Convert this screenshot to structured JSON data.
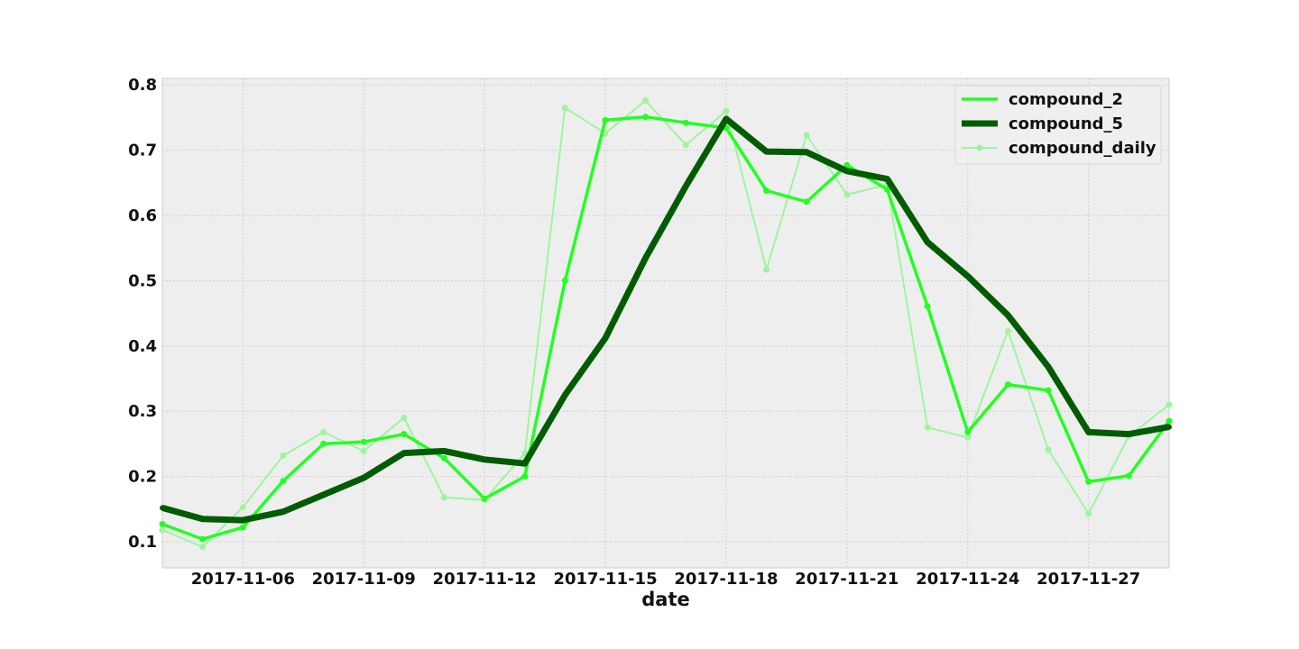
{
  "chart_data": {
    "type": "line",
    "xlabel": "date",
    "ylabel": "",
    "x": [
      "2017-11-04",
      "2017-11-05",
      "2017-11-06",
      "2017-11-07",
      "2017-11-08",
      "2017-11-09",
      "2017-11-10",
      "2017-11-11",
      "2017-11-12",
      "2017-11-13",
      "2017-11-14",
      "2017-11-15",
      "2017-11-16",
      "2017-11-17",
      "2017-11-18",
      "2017-11-19",
      "2017-11-20",
      "2017-11-21",
      "2017-11-22",
      "2017-11-23",
      "2017-11-24",
      "2017-11-25",
      "2017-11-26",
      "2017-11-27",
      "2017-11-28",
      "2017-11-29"
    ],
    "xlim": [
      "2017-11-04",
      "2017-11-29"
    ],
    "ylim": [
      0.06,
      0.81
    ],
    "x_ticks": [
      "2017-11-06",
      "2017-11-09",
      "2017-11-12",
      "2017-11-15",
      "2017-11-18",
      "2017-11-21",
      "2017-11-24",
      "2017-11-27"
    ],
    "y_ticks": [
      "0.1",
      "0.2",
      "0.3",
      "0.4",
      "0.5",
      "0.6",
      "0.7",
      "0.8"
    ],
    "grid": true,
    "legend_position": "top-right",
    "series": [
      {
        "name": "compound_2",
        "color": "#22ff22",
        "values": [
          0.127,
          0.104,
          0.122,
          0.193,
          0.25,
          0.253,
          0.265,
          0.228,
          0.166,
          0.2,
          0.5,
          0.746,
          0.751,
          0.742,
          0.734,
          0.638,
          0.621,
          0.677,
          0.64,
          0.461,
          0.268,
          0.341,
          0.332,
          0.192,
          0.201,
          0.285
        ]
      },
      {
        "name": "compound_5",
        "color": "#005c00",
        "values": [
          0.152,
          0.135,
          0.133,
          0.146,
          0.172,
          0.198,
          0.236,
          0.239,
          0.226,
          0.22,
          0.325,
          0.412,
          0.535,
          0.645,
          0.748,
          0.698,
          0.697,
          0.668,
          0.656,
          0.559,
          0.507,
          0.447,
          0.368,
          0.268,
          0.265,
          0.276
        ]
      },
      {
        "name": "compound_daily",
        "color": "#9ef59e",
        "values": [
          0.118,
          0.092,
          0.153,
          0.232,
          0.268,
          0.239,
          0.29,
          0.168,
          0.164,
          0.236,
          0.765,
          0.726,
          0.776,
          0.708,
          0.76,
          0.517,
          0.723,
          0.632,
          0.647,
          0.275,
          0.26,
          0.423,
          0.241,
          0.143,
          0.262,
          0.31
        ]
      }
    ]
  }
}
